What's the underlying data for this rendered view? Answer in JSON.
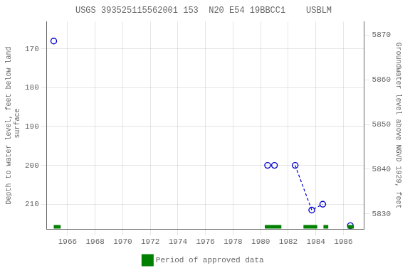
{
  "chart_data": {
    "type": "scatter",
    "title": "USGS 393525115562001 153  N20 E54 19BBCC1    USBLM",
    "y_label": "Depth to water level, feet below land\n surface",
    "y2_label": "Groundwater level above NGVD 1929, feet",
    "xlim": [
      1964.5,
      1987.5
    ],
    "xticks": [
      1966,
      1968,
      1970,
      1972,
      1974,
      1976,
      1978,
      1980,
      1982,
      1984,
      1986
    ],
    "ylim": [
      216.5,
      163.0
    ],
    "yticks": [
      170,
      180,
      190,
      200,
      210
    ],
    "y2lim": [
      5826.5,
      5873.0
    ],
    "y2ticks": [
      5870,
      5860,
      5850,
      5840,
      5830
    ],
    "grid": true,
    "legend": "bottom",
    "series": [
      {
        "type": "scatter",
        "color": "#0000cc",
        "marker": "open_circle",
        "x": [
          1965.0,
          1980.5,
          1981.0,
          1982.5,
          1983.7,
          1984.5,
          1986.5
        ],
        "values": [
          168.0,
          200.0,
          200.0,
          200.0,
          211.5,
          210.0,
          215.5
        ]
      },
      {
        "type": "line",
        "color": "#0000cc",
        "line_style": "dashed",
        "x": [
          1982.5,
          1983.7,
          1984.5
        ],
        "values": [
          200.0,
          211.5,
          210.0
        ]
      },
      {
        "type": "span",
        "name": "Period of approved data",
        "color": "#008000",
        "y": 215.8,
        "periods": [
          [
            1965.0,
            1965.5
          ],
          [
            1980.3,
            1981.5
          ],
          [
            1983.1,
            1984.1
          ],
          [
            1984.55,
            1984.9
          ],
          [
            1986.3,
            1986.75
          ]
        ]
      }
    ]
  }
}
